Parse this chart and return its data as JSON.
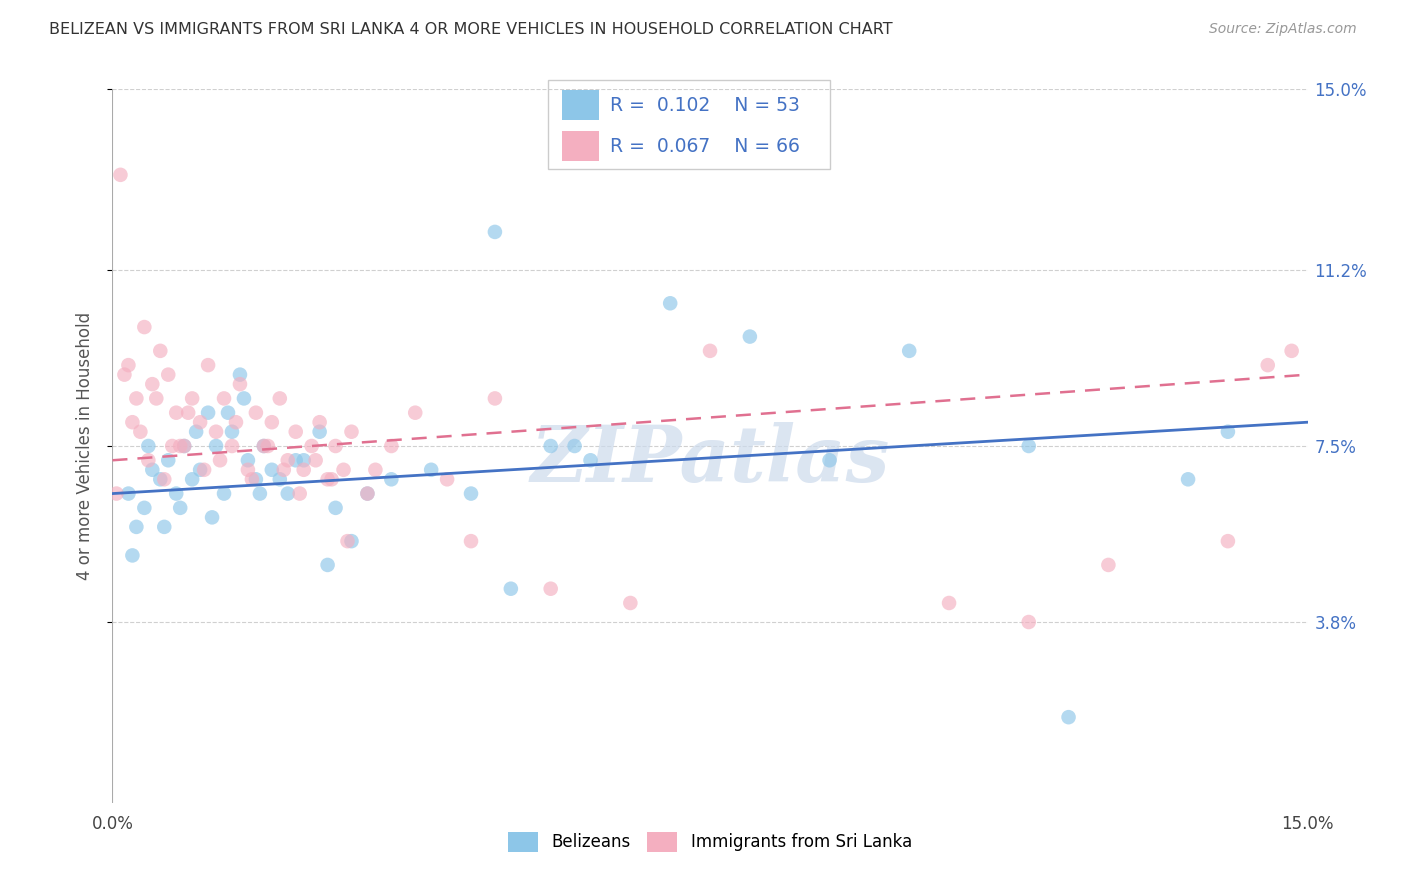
{
  "title": "BELIZEAN VS IMMIGRANTS FROM SRI LANKA 4 OR MORE VEHICLES IN HOUSEHOLD CORRELATION CHART",
  "source": "Source: ZipAtlas.com",
  "ylabel": "4 or more Vehicles in Household",
  "xlim": [
    0.0,
    15.0
  ],
  "ylim": [
    0.0,
    15.0
  ],
  "ytick_positions": [
    3.8,
    7.5,
    11.2,
    15.0
  ],
  "ytick_labels": [
    "3.8%",
    "7.5%",
    "11.2%",
    "15.0%"
  ],
  "blue_color": "#8dc6e8",
  "pink_color": "#f4afc0",
  "blue_line_color": "#4472c4",
  "pink_line_color": "#e07090",
  "legend_R1": "0.102",
  "legend_N1": "53",
  "legend_R2": "0.067",
  "legend_N2": "66",
  "watermark": "ZIPatlas",
  "series1_label": "Belizeans",
  "series2_label": "Immigrants from Sri Lanka",
  "blue_x": [
    0.2,
    0.3,
    0.4,
    0.5,
    0.6,
    0.7,
    0.8,
    0.9,
    1.0,
    1.1,
    1.2,
    1.3,
    1.4,
    1.5,
    1.6,
    1.7,
    1.8,
    1.9,
    2.0,
    2.2,
    2.4,
    2.6,
    2.8,
    3.0,
    3.5,
    4.0,
    4.5,
    5.0,
    5.5,
    6.0,
    8.0,
    9.0,
    10.0,
    11.5,
    12.0,
    13.5,
    0.25,
    0.45,
    0.65,
    0.85,
    1.05,
    1.25,
    1.45,
    1.65,
    1.85,
    2.1,
    2.3,
    2.7,
    3.2,
    4.8,
    5.8,
    7.0,
    14.0
  ],
  "blue_y": [
    6.5,
    5.8,
    6.2,
    7.0,
    6.8,
    7.2,
    6.5,
    7.5,
    6.8,
    7.0,
    8.2,
    7.5,
    6.5,
    7.8,
    9.0,
    7.2,
    6.8,
    7.5,
    7.0,
    6.5,
    7.2,
    7.8,
    6.2,
    5.5,
    6.8,
    7.0,
    6.5,
    4.5,
    7.5,
    7.2,
    9.8,
    7.2,
    9.5,
    7.5,
    1.8,
    6.8,
    5.2,
    7.5,
    5.8,
    6.2,
    7.8,
    6.0,
    8.2,
    8.5,
    6.5,
    6.8,
    7.2,
    5.0,
    6.5,
    12.0,
    7.5,
    10.5,
    7.8
  ],
  "pink_x": [
    0.1,
    0.2,
    0.3,
    0.4,
    0.5,
    0.6,
    0.7,
    0.8,
    0.9,
    1.0,
    1.1,
    1.2,
    1.3,
    1.4,
    1.5,
    1.6,
    1.7,
    1.8,
    1.9,
    2.0,
    2.1,
    2.2,
    2.3,
    2.4,
    2.5,
    2.6,
    2.7,
    2.8,
    2.9,
    3.0,
    3.2,
    3.5,
    3.8,
    4.2,
    4.8,
    0.15,
    0.35,
    0.55,
    0.75,
    0.95,
    1.15,
    1.35,
    1.55,
    1.75,
    1.95,
    2.15,
    2.35,
    2.55,
    2.75,
    2.95,
    3.3,
    0.05,
    0.25,
    0.45,
    0.65,
    0.85,
    4.5,
    5.5,
    6.5,
    7.5,
    10.5,
    11.5,
    12.5,
    14.0,
    14.5,
    14.8
  ],
  "pink_y": [
    13.2,
    9.2,
    8.5,
    10.0,
    8.8,
    9.5,
    9.0,
    8.2,
    7.5,
    8.5,
    8.0,
    9.2,
    7.8,
    8.5,
    7.5,
    8.8,
    7.0,
    8.2,
    7.5,
    8.0,
    8.5,
    7.2,
    7.8,
    7.0,
    7.5,
    8.0,
    6.8,
    7.5,
    7.0,
    7.8,
    6.5,
    7.5,
    8.2,
    6.8,
    8.5,
    9.0,
    7.8,
    8.5,
    7.5,
    8.2,
    7.0,
    7.2,
    8.0,
    6.8,
    7.5,
    7.0,
    6.5,
    7.2,
    6.8,
    5.5,
    7.0,
    6.5,
    8.0,
    7.2,
    6.8,
    7.5,
    5.5,
    4.5,
    4.2,
    9.5,
    4.2,
    3.8,
    5.0,
    5.5,
    9.2,
    9.5
  ]
}
